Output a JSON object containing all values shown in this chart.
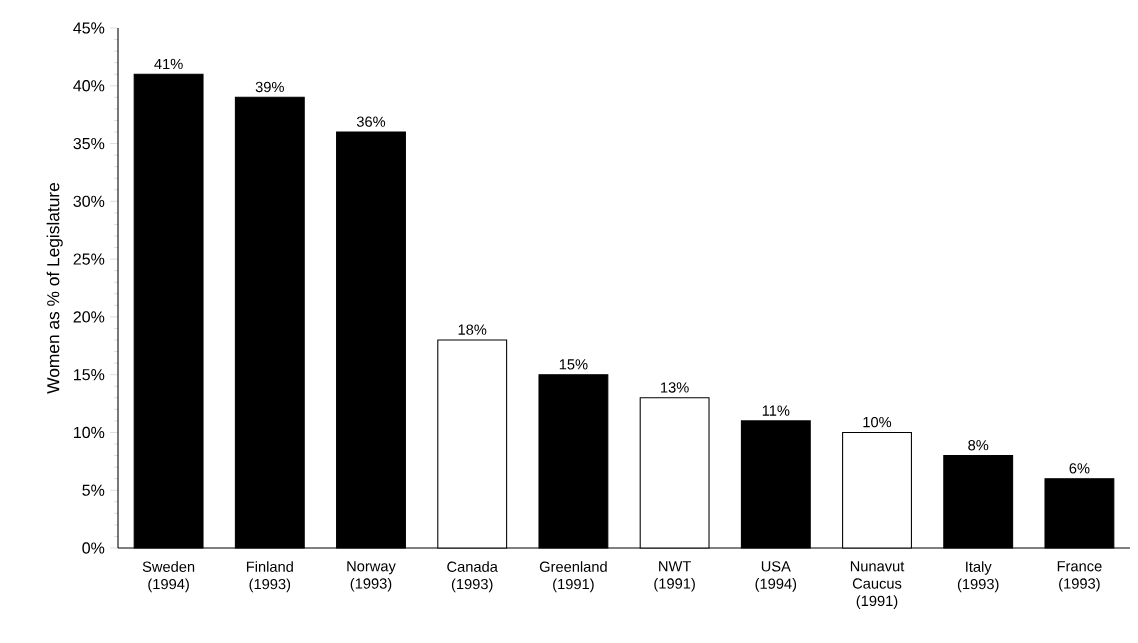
{
  "chart_data": {
    "type": "bar",
    "ylabel": "Women as % of Legislature",
    "categories": [
      "Sweden (1994)",
      "Finland (1993)",
      "Norway (1993)",
      "Canada (1993)",
      "Greenland (1991)",
      "NWT (1991)",
      "USA (1994)",
      "Nunavut Caucus (1991)",
      "Italy (1993)",
      "France (1993)"
    ],
    "values": [
      41,
      39,
      36,
      18,
      15,
      13,
      11,
      10,
      8,
      6
    ],
    "value_labels": [
      "41%",
      "39%",
      "36%",
      "18%",
      "15%",
      "13%",
      "11%",
      "10%",
      "8%",
      "6%"
    ],
    "colors": [
      "#000000",
      "#000000",
      "#000000",
      "#ffffff",
      "#000000",
      "#ffffff",
      "#000000",
      "#ffffff",
      "#000000",
      "#000000"
    ],
    "ylim": [
      0,
      45
    ],
    "yticks": [
      {
        "value": 0,
        "label": "0%"
      },
      {
        "value": 5,
        "label": "5%"
      },
      {
        "value": 10,
        "label": "10%"
      },
      {
        "value": 15,
        "label": "15%"
      },
      {
        "value": 20,
        "label": "20%"
      },
      {
        "value": 25,
        "label": "25%"
      },
      {
        "value": 30,
        "label": "30%"
      },
      {
        "value": 35,
        "label": "35%"
      },
      {
        "value": 40,
        "label": "40%"
      },
      {
        "value": 45,
        "label": "45%"
      }
    ],
    "grid": false
  }
}
